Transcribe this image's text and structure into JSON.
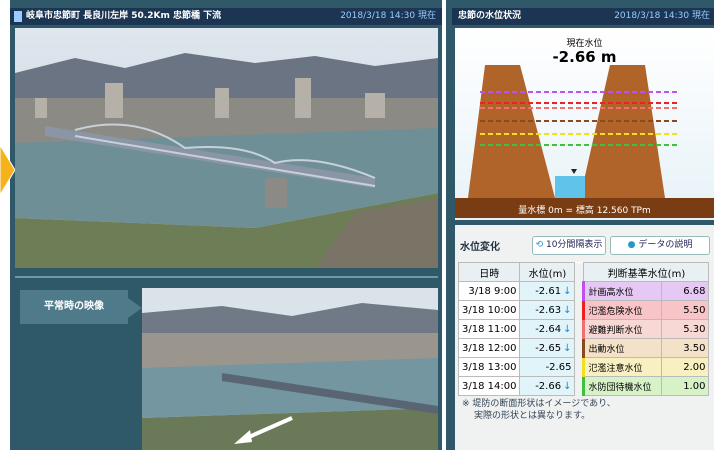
{
  "left": {
    "header_title": "岐阜市忠節町 長良川左岸 50.2Km 忠節橋 下流",
    "header_time": "2018/3/18 14:30 現在",
    "normal_label": "平常時の映像"
  },
  "right": {
    "header_title": "忠節の水位状況",
    "header_time": "2018/3/18 14:30 現在",
    "diagram": {
      "current_label": "現在水位",
      "current_value": "-2.66 m",
      "gauge_note": "量水標 0m = 標高 12.560 TPm"
    },
    "section_title": "水位変化",
    "buttons": [
      "10分間隔表示",
      "データの説明"
    ],
    "table": {
      "headers": [
        "日時",
        "水位(m)",
        "判断基準水位(m)"
      ],
      "rows": [
        {
          "time": "3/18 9:00",
          "level": "-2.61",
          "trend": "↓",
          "criterion": "計画高水位",
          "criterion_value": "6.68"
        },
        {
          "time": "3/18 10:00",
          "level": "-2.63",
          "trend": "↓",
          "criterion": "氾濫危険水位",
          "criterion_value": "5.50"
        },
        {
          "time": "3/18 11:00",
          "level": "-2.64",
          "trend": "↓",
          "criterion": "避難判断水位",
          "criterion_value": "5.30"
        },
        {
          "time": "3/18 12:00",
          "level": "-2.65",
          "trend": "↓",
          "criterion": "出動水位",
          "criterion_value": "3.50"
        },
        {
          "time": "3/18 13:00",
          "level": "-2.65",
          "criterion": "氾濫注意水位",
          "criterion_value": "2.00"
        },
        {
          "time": "3/18 14:00",
          "level": "-2.66",
          "trend": "↓",
          "criterion": "水防団待機水位",
          "criterion_value": "1.00"
        }
      ]
    },
    "note": [
      "※ 堤防の断面形状はイメージであり、",
      "実際の形状とは異なります。"
    ]
  }
}
